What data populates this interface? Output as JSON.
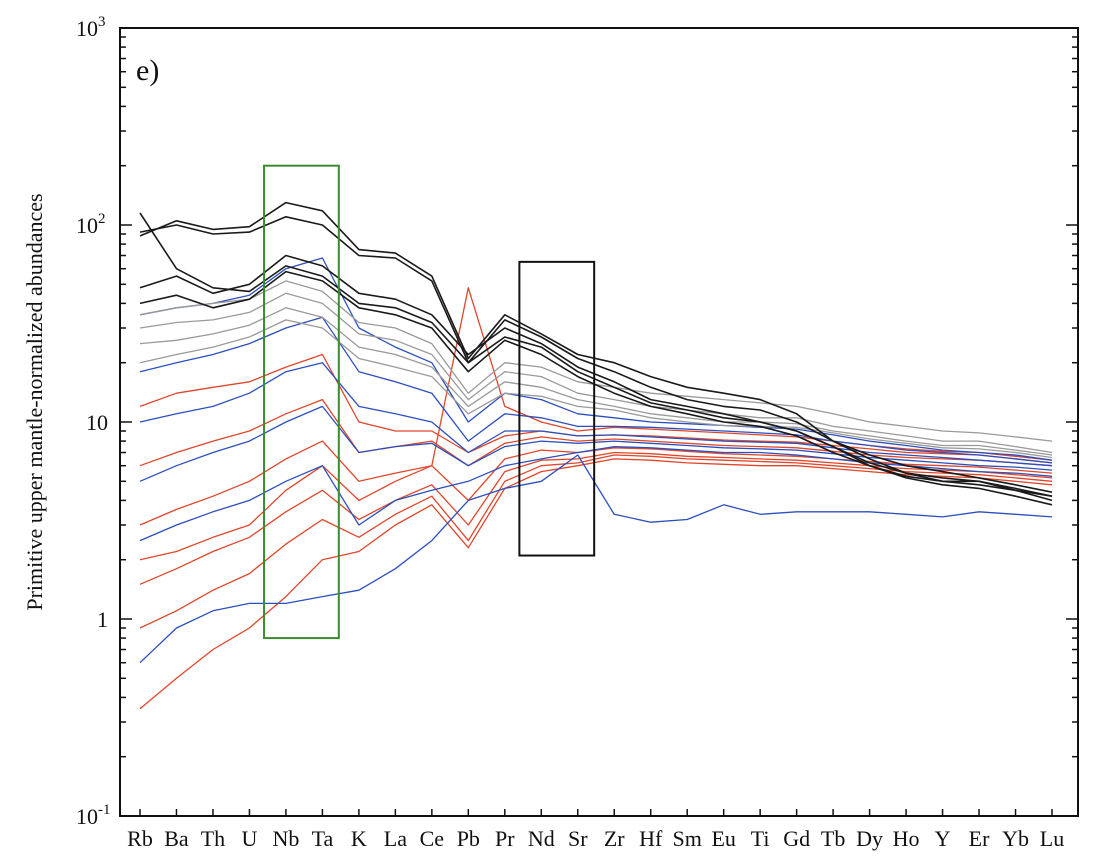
{
  "chart_data": {
    "type": "line",
    "panel_label": "e)",
    "ylabel": "Primitive upper mantle-normalized abundances",
    "xlabel": "",
    "categories": [
      "Rb",
      "Ba",
      "Th",
      "U",
      "Nb",
      "Ta",
      "K",
      "La",
      "Ce",
      "Pb",
      "Pr",
      "Nd",
      "Sr",
      "Zr",
      "Hf",
      "Sm",
      "Eu",
      "Ti",
      "Gd",
      "Tb",
      "Dy",
      "Ho",
      "Y",
      "Er",
      "Yb",
      "Lu"
    ],
    "y_scale": "log",
    "ylim": [
      0.1,
      1000
    ],
    "y_ticks": [
      {
        "value": 0.1,
        "base": "10",
        "exp": "-1"
      },
      {
        "value": 1,
        "base": "1",
        "exp": ""
      },
      {
        "value": 10,
        "base": "10",
        "exp": ""
      },
      {
        "value": 100,
        "base": "10",
        "exp": "2"
      },
      {
        "value": 1000,
        "base": "10",
        "exp": "3"
      }
    ],
    "grid": false,
    "series": [
      {
        "group": "black",
        "color": "#1a1a1a",
        "values": [
          88,
          105,
          95,
          98,
          130,
          118,
          75,
          72,
          55,
          21,
          35,
          28,
          22,
          20,
          17,
          15,
          14,
          13,
          11,
          8,
          6.5,
          5.5,
          5,
          5,
          4.5,
          4.2
        ]
      },
      {
        "group": "black",
        "color": "#1a1a1a",
        "values": [
          48,
          55,
          45,
          50,
          70,
          62,
          45,
          42,
          35,
          22,
          30,
          25,
          19,
          16,
          13,
          12,
          11,
          10,
          9,
          7.5,
          6,
          5.2,
          4.8,
          4.6,
          4.2,
          3.8
        ]
      },
      {
        "group": "black",
        "color": "#1a1a1a",
        "values": [
          40,
          44,
          38,
          42,
          58,
          52,
          38,
          35,
          30,
          18,
          26,
          22,
          17,
          14,
          12,
          11,
          10,
          9.5,
          8.5,
          7,
          6,
          5.3,
          5,
          4.8,
          4.5,
          4
        ]
      },
      {
        "group": "black",
        "color": "#1a1a1a",
        "values": [
          115,
          60,
          48,
          46,
          62,
          55,
          40,
          38,
          32,
          20,
          27,
          24,
          18,
          15,
          12.5,
          11.5,
          10.5,
          10,
          9,
          7.5,
          6.2,
          5.5,
          5.2,
          5,
          4.6,
          4.2
        ]
      },
      {
        "group": "black",
        "color": "#1a1a1a",
        "values": [
          92,
          100,
          90,
          92,
          110,
          100,
          70,
          68,
          52,
          20,
          33,
          27,
          21,
          18,
          15,
          13,
          12,
          11.5,
          10,
          8,
          6.8,
          6,
          5.6,
          5.2,
          4.8,
          4.4
        ]
      },
      {
        "group": "grey",
        "color": "#9a9a9a",
        "values": [
          30,
          32,
          33,
          36,
          45,
          40,
          28,
          26,
          22,
          13,
          18,
          17,
          14,
          13,
          12,
          11.5,
          11,
          10.5,
          10.5,
          9.5,
          9,
          8.5,
          8,
          8,
          7.5,
          7
        ]
      },
      {
        "group": "grey",
        "color": "#9a9a9a",
        "values": [
          25,
          26,
          28,
          31,
          38,
          34,
          24,
          22,
          19,
          12,
          16,
          15,
          13,
          12,
          11,
          10.5,
          10,
          10,
          9.8,
          9,
          8.5,
          8,
          7.6,
          7.6,
          7.2,
          6.8
        ]
      },
      {
        "group": "grey",
        "color": "#9a9a9a",
        "values": [
          20,
          22,
          24,
          27,
          33,
          30,
          21,
          19,
          17,
          11,
          14,
          13.5,
          12,
          11.5,
          10.5,
          10,
          9.6,
          9.5,
          9.4,
          8.8,
          8.2,
          7.8,
          7.4,
          7.3,
          7,
          6.6
        ]
      },
      {
        "group": "grey",
        "color": "#9a9a9a",
        "values": [
          35,
          38,
          40,
          42,
          52,
          46,
          32,
          30,
          25,
          14,
          20,
          19,
          16,
          15,
          14,
          13.5,
          13,
          12.5,
          12,
          11,
          10,
          9.5,
          9,
          8.8,
          8.4,
          8
        ]
      },
      {
        "group": "blue",
        "color": "#2b4fbf",
        "values": [
          35,
          38,
          40,
          44,
          60,
          68,
          30,
          24,
          20,
          10,
          14,
          13,
          11,
          10.5,
          10,
          9.8,
          9.6,
          9.4,
          9.2,
          8.6,
          8,
          7.6,
          7.2,
          7,
          6.8,
          6.4
        ]
      },
      {
        "group": "blue",
        "color": "#2b4fbf",
        "values": [
          18,
          20,
          22,
          25,
          30,
          34,
          18,
          16,
          14,
          8,
          11,
          10.5,
          9.5,
          9.5,
          9.4,
          9.2,
          9,
          8.8,
          8.6,
          8,
          7.6,
          7.2,
          7,
          6.8,
          6.5,
          6.2
        ]
      },
      {
        "group": "blue",
        "color": "#2b4fbf",
        "values": [
          10,
          11,
          12,
          14,
          18,
          20,
          12,
          11,
          10,
          7,
          9,
          9,
          8.5,
          8.6,
          8.4,
          8.2,
          8,
          7.9,
          7.8,
          7.4,
          7,
          6.8,
          6.6,
          6.4,
          6.2,
          6
        ]
      },
      {
        "group": "blue",
        "color": "#2b4fbf",
        "values": [
          5,
          6,
          7,
          8,
          10,
          12,
          7,
          7.5,
          7.8,
          6,
          7.5,
          8,
          7.8,
          8,
          7.8,
          7.6,
          7.4,
          7.3,
          7.2,
          6.9,
          6.6,
          6.4,
          6.2,
          6,
          5.9,
          5.7
        ]
      },
      {
        "group": "blue",
        "color": "#2b4fbf",
        "values": [
          2.5,
          3,
          3.5,
          4,
          5,
          6,
          3,
          4,
          4.5,
          5,
          6,
          6.5,
          7,
          7.5,
          7.4,
          7.2,
          7,
          7,
          6.8,
          6.5,
          6.2,
          6,
          5.8,
          5.6,
          5.5,
          5.3
        ]
      },
      {
        "group": "blue",
        "color": "#2b4fbf",
        "values": [
          0.6,
          0.9,
          1.1,
          1.2,
          1.2,
          1.3,
          1.4,
          1.8,
          2.5,
          4,
          4.6,
          5,
          6.8,
          3.4,
          3.1,
          3.2,
          3.8,
          3.4,
          3.5,
          3.5,
          3.5,
          3.4,
          3.3,
          3.5,
          3.4,
          3.3
        ]
      },
      {
        "group": "red",
        "color": "#e0462a",
        "values": [
          12,
          14,
          15,
          16,
          19,
          22,
          10,
          9,
          9,
          7,
          8.5,
          9,
          8.5,
          8.6,
          8.5,
          8.3,
          8.1,
          8,
          7.9,
          7.6,
          7.3,
          7,
          6.9,
          6.8,
          6.5,
          6.2
        ]
      },
      {
        "group": "red",
        "color": "#e0462a",
        "values": [
          6,
          7,
          8,
          9,
          11,
          13,
          7,
          7.5,
          8,
          6,
          7.8,
          8.4,
          8,
          8.2,
          8,
          7.8,
          7.6,
          7.5,
          7.4,
          7.1,
          6.8,
          6.6,
          6.5,
          6.4,
          6.2,
          6
        ]
      },
      {
        "group": "red",
        "color": "#e0462a",
        "values": [
          3,
          3.6,
          4.2,
          5,
          6.5,
          8,
          5,
          5.5,
          6,
          4,
          6.5,
          7.2,
          7,
          7.4,
          7.3,
          7.1,
          6.9,
          6.8,
          6.7,
          6.5,
          6.3,
          6.1,
          6,
          5.9,
          5.7,
          5.5
        ]
      },
      {
        "group": "red",
        "color": "#e0462a",
        "values": [
          1.5,
          1.8,
          2.2,
          2.6,
          3.5,
          4.5,
          3.2,
          4,
          4.8,
          3,
          5.6,
          6.4,
          6.5,
          7,
          6.9,
          6.7,
          6.6,
          6.5,
          6.4,
          6.2,
          6,
          5.8,
          5.7,
          5.6,
          5.4,
          5.2
        ]
      },
      {
        "group": "red",
        "color": "#e0462a",
        "values": [
          0.9,
          1.1,
          1.4,
          1.7,
          2.4,
          3.2,
          2.6,
          3.4,
          4.2,
          2.5,
          5,
          6,
          6.2,
          6.8,
          6.7,
          6.5,
          6.4,
          6.3,
          6.2,
          6,
          5.8,
          5.6,
          5.5,
          5.4,
          5.2,
          5
        ]
      },
      {
        "group": "red",
        "color": "#e0462a",
        "values": [
          0.35,
          0.5,
          0.7,
          0.9,
          1.3,
          2,
          2.2,
          3,
          3.8,
          2.3,
          4.6,
          5.6,
          6,
          6.5,
          6.4,
          6.2,
          6.1,
          6,
          6,
          5.8,
          5.6,
          5.4,
          5.3,
          5.2,
          5,
          4.8
        ]
      },
      {
        "group": "red",
        "color": "#e0462a",
        "values": [
          2,
          2.2,
          2.6,
          3,
          4.5,
          6,
          4,
          5,
          6,
          48,
          12,
          10,
          9,
          9.4,
          9.2,
          9,
          8.8,
          8.6,
          8.4,
          8,
          7.6,
          7.3,
          7.1,
          7,
          6.7,
          6.4
        ]
      }
    ],
    "highlight_boxes": [
      {
        "color": "#3a8a2e",
        "from_category": "Nb",
        "to_category": "Ta",
        "ymin": 0.8,
        "ymax": 200
      },
      {
        "color": "#111111",
        "from_category": "Nd",
        "to_category": "Sr",
        "ymin": 2.1,
        "ymax": 65
      }
    ]
  }
}
